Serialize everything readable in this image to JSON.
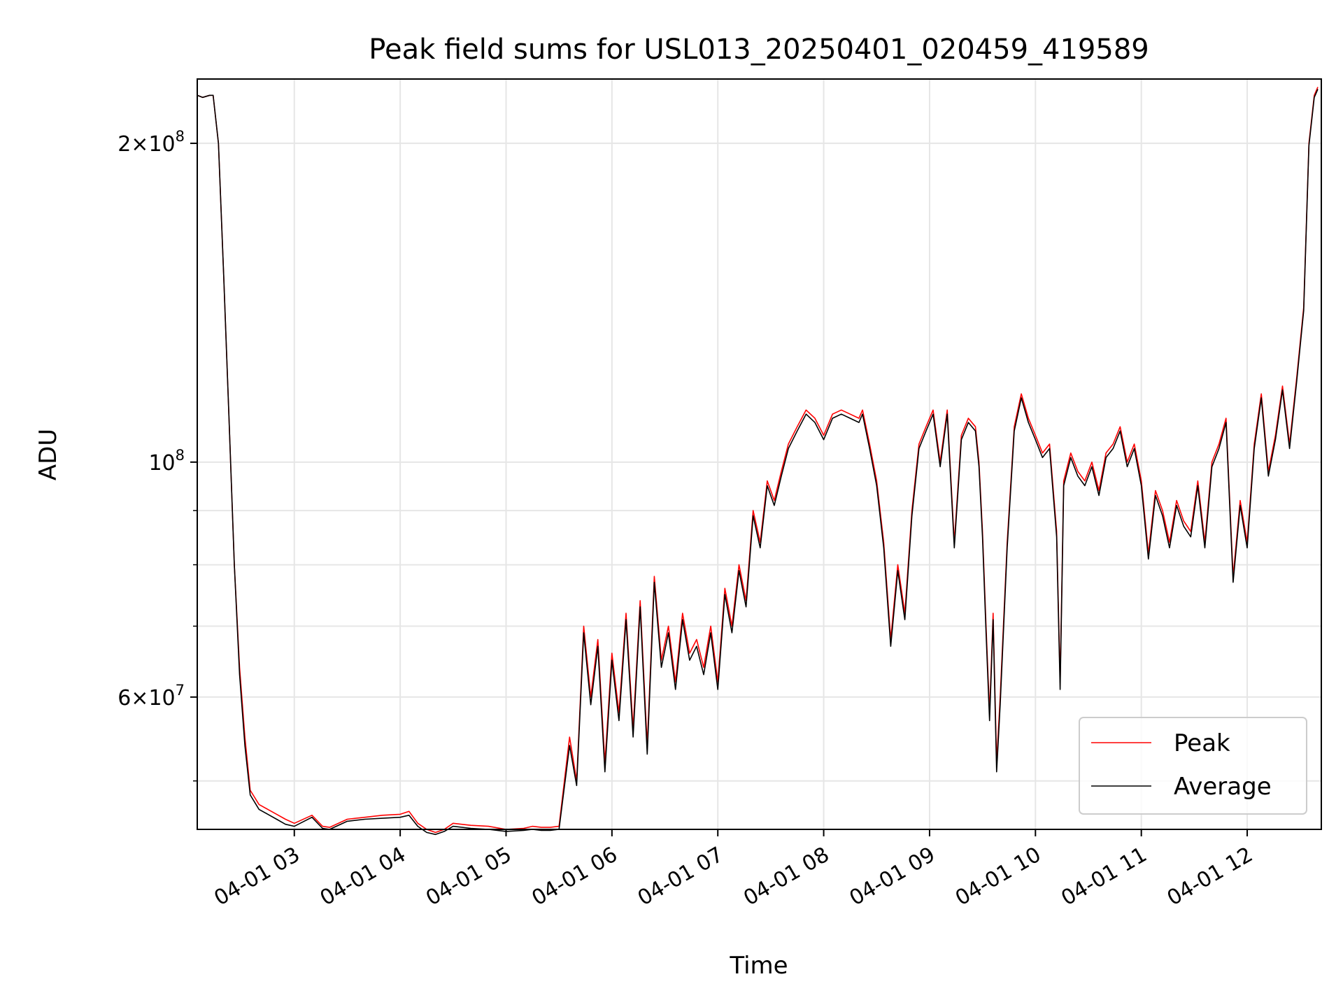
{
  "chart_data": {
    "type": "line",
    "title": "Peak field sums for USL013_20250401_020459_419589",
    "xlabel": "Time",
    "ylabel": "ADU",
    "y_scale": "log",
    "xlim": [
      "2025-04-01 02:05",
      "2025-04-01 12:42"
    ],
    "ylim": [
      45000000,
      230000000
    ],
    "grid": true,
    "legend_position": "lower right",
    "x_tick_labels": [
      "04-01 03",
      "04-01 04",
      "04-01 05",
      "04-01 06",
      "04-01 07",
      "04-01 08",
      "04-01 09",
      "04-01 10",
      "04-01 11",
      "04-01 12"
    ],
    "x_tick_times": [
      "2025-04-01 03:00",
      "2025-04-01 04:00",
      "2025-04-01 05:00",
      "2025-04-01 06:00",
      "2025-04-01 07:00",
      "2025-04-01 08:00",
      "2025-04-01 09:00",
      "2025-04-01 10:00",
      "2025-04-01 11:00",
      "2025-04-01 12:00"
    ],
    "y_major_tick_labels": [
      {
        "value": 60000000,
        "mantissa": "6",
        "exp": "7"
      },
      {
        "value": 100000000,
        "mantissa": "",
        "exp": "8"
      },
      {
        "value": 200000000,
        "mantissa": "2",
        "exp": "8"
      }
    ],
    "y_minor_ticks": [
      50000000,
      70000000,
      80000000,
      90000000
    ],
    "x": [
      "02:05",
      "02:08",
      "02:12",
      "02:14",
      "02:17",
      "02:20",
      "02:23",
      "02:26",
      "02:29",
      "02:32",
      "02:35",
      "02:40",
      "02:45",
      "02:50",
      "02:55",
      "03:00",
      "03:10",
      "03:16",
      "03:20",
      "03:30",
      "03:40",
      "03:50",
      "04:00",
      "04:05",
      "04:10",
      "04:15",
      "04:20",
      "04:25",
      "04:30",
      "04:40",
      "04:50",
      "05:00",
      "05:10",
      "05:15",
      "05:20",
      "05:25",
      "05:30",
      "05:36",
      "05:40",
      "05:44",
      "05:48",
      "05:52",
      "05:56",
      "06:00",
      "06:04",
      "06:08",
      "06:12",
      "06:16",
      "06:20",
      "06:24",
      "06:28",
      "06:32",
      "06:36",
      "06:40",
      "06:44",
      "06:48",
      "06:52",
      "06:56",
      "07:00",
      "07:04",
      "07:08",
      "07:12",
      "07:16",
      "07:20",
      "07:24",
      "07:28",
      "07:32",
      "07:36",
      "07:40",
      "07:45",
      "07:50",
      "07:55",
      "08:00",
      "08:05",
      "08:10",
      "08:15",
      "08:20",
      "08:22",
      "08:26",
      "08:30",
      "08:34",
      "08:38",
      "08:42",
      "08:46",
      "08:50",
      "08:54",
      "08:58",
      "09:02",
      "09:06",
      "09:10",
      "09:14",
      "09:18",
      "09:22",
      "09:26",
      "09:28",
      "09:30",
      "09:32",
      "09:34",
      "09:36",
      "09:38",
      "09:40",
      "09:44",
      "09:48",
      "09:52",
      "09:56",
      "10:00",
      "10:04",
      "10:08",
      "10:12",
      "10:14",
      "10:16",
      "10:20",
      "10:24",
      "10:28",
      "10:32",
      "10:36",
      "10:40",
      "10:44",
      "10:48",
      "10:52",
      "10:56",
      "11:00",
      "11:04",
      "11:08",
      "11:12",
      "11:16",
      "11:20",
      "11:24",
      "11:28",
      "11:32",
      "11:36",
      "11:40",
      "11:44",
      "11:48",
      "11:52",
      "11:56",
      "12:00",
      "12:04",
      "12:08",
      "12:12",
      "12:16",
      "12:20",
      "12:24",
      "12:28",
      "12:32",
      "12:35",
      "12:38",
      "12:40"
    ],
    "series": [
      {
        "name": "Peak",
        "color": "#ff0000",
        "values": [
          222000000,
          221000000,
          222000000,
          222000000,
          200000000,
          150000000,
          110000000,
          80000000,
          64000000,
          55000000,
          49000000,
          47500000,
          47000000,
          46500000,
          46000000,
          45600000,
          46400000,
          45300000,
          45200000,
          46000000,
          46200000,
          46400000,
          46500000,
          46800000,
          45600000,
          45000000,
          44700000,
          45000000,
          45600000,
          45400000,
          45300000,
          45000000,
          45100000,
          45300000,
          45200000,
          45200000,
          45300000,
          55000000,
          50000000,
          70000000,
          60000000,
          68000000,
          52000000,
          66000000,
          58000000,
          72000000,
          56000000,
          74000000,
          54000000,
          78000000,
          65000000,
          70000000,
          62000000,
          72000000,
          66000000,
          68000000,
          64000000,
          70000000,
          62000000,
          76000000,
          70000000,
          80000000,
          74000000,
          90000000,
          84000000,
          96000000,
          92000000,
          98000000,
          104000000,
          108000000,
          112000000,
          110000000,
          106000000,
          111000000,
          112000000,
          111000000,
          110000000,
          112000000,
          104000000,
          96000000,
          84000000,
          68000000,
          80000000,
          72000000,
          90000000,
          104000000,
          108000000,
          112000000,
          100000000,
          112000000,
          84000000,
          106000000,
          110000000,
          108000000,
          100000000,
          86000000,
          70000000,
          58000000,
          72000000,
          52000000,
          60000000,
          84000000,
          108000000,
          116000000,
          110000000,
          106000000,
          102000000,
          104000000,
          86000000,
          62000000,
          96000000,
          102000000,
          98000000,
          96000000,
          100000000,
          94000000,
          102000000,
          104000000,
          108000000,
          100000000,
          104000000,
          96000000,
          82000000,
          94000000,
          90000000,
          84000000,
          92000000,
          88000000,
          86000000,
          96000000,
          84000000,
          100000000,
          104000000,
          110000000,
          78000000,
          92000000,
          84000000,
          104000000,
          116000000,
          98000000,
          106000000,
          118000000,
          104000000,
          120000000,
          140000000,
          200000000,
          222000000,
          226000000
        ]
      },
      {
        "name": "Average",
        "color": "#000000",
        "values": [
          222000000,
          221000000,
          222000000,
          222000000,
          200000000,
          150000000,
          110000000,
          80000000,
          63000000,
          54000000,
          48500000,
          47000000,
          46500000,
          46000000,
          45500000,
          45300000,
          46200000,
          45100000,
          45000000,
          45800000,
          46000000,
          46100000,
          46200000,
          46400000,
          45300000,
          44700000,
          44500000,
          44800000,
          45300000,
          45100000,
          45000000,
          44800000,
          44900000,
          45000000,
          44900000,
          44900000,
          45000000,
          54000000,
          49500000,
          69000000,
          59000000,
          67000000,
          51000000,
          65000000,
          57000000,
          71000000,
          55000000,
          73000000,
          53000000,
          77000000,
          64000000,
          69000000,
          61000000,
          71000000,
          65000000,
          67000000,
          63000000,
          69000000,
          61000000,
          75000000,
          69000000,
          79000000,
          73000000,
          89000000,
          83000000,
          95000000,
          91000000,
          97000000,
          103000000,
          107000000,
          111000000,
          109000000,
          105000000,
          110000000,
          111000000,
          110000000,
          109000000,
          111000000,
          103000000,
          95000000,
          83000000,
          67000000,
          79000000,
          71000000,
          89000000,
          103000000,
          107000000,
          111000000,
          99000000,
          111000000,
          83000000,
          105000000,
          109000000,
          107000000,
          99000000,
          85000000,
          69000000,
          57000000,
          71000000,
          51000000,
          59000000,
          83000000,
          107000000,
          115000000,
          109000000,
          105000000,
          101000000,
          103000000,
          85000000,
          61000000,
          95000000,
          101000000,
          97000000,
          95000000,
          99000000,
          93000000,
          101000000,
          103000000,
          107000000,
          99000000,
          103000000,
          95000000,
          81000000,
          93000000,
          89000000,
          83000000,
          91000000,
          87000000,
          85000000,
          95000000,
          83000000,
          99000000,
          103000000,
          109000000,
          77000000,
          91000000,
          83000000,
          103000000,
          115000000,
          97000000,
          105000000,
          117000000,
          103000000,
          119000000,
          139000000,
          199000000,
          221000000,
          225000000
        ]
      }
    ]
  }
}
